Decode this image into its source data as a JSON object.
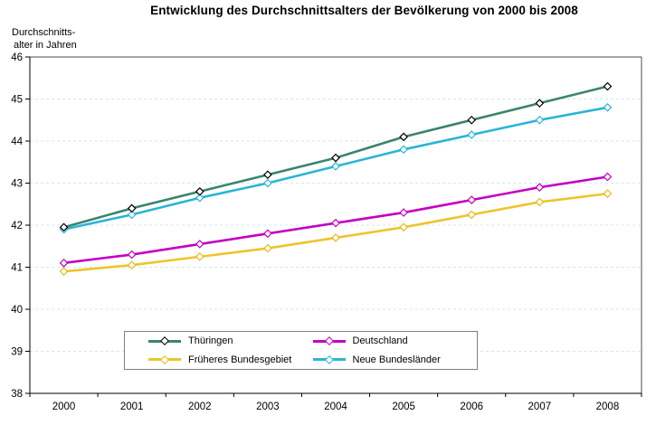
{
  "chart_data": {
    "type": "line",
    "title": "Entwicklung des Durchschnittsalters der Bevölkerung von 2000 bis 2008",
    "ylabel_lines": [
      "Durchschnitts-",
      "alter in Jahren"
    ],
    "xlabel": "",
    "x": [
      2000,
      2001,
      2002,
      2003,
      2004,
      2005,
      2006,
      2007,
      2008
    ],
    "ylim": [
      38,
      46
    ],
    "ytick_step": 1,
    "grid": "horizontal-dashed",
    "legend_position": "bottom-inside-box",
    "series": [
      {
        "name": "Thüringen",
        "color": "#3a8470",
        "marker_border": "#000000",
        "values": [
          41.95,
          42.4,
          42.8,
          43.2,
          43.6,
          44.1,
          44.5,
          44.9,
          45.3
        ]
      },
      {
        "name": "Deutschland",
        "color": "#c400c4",
        "marker_border": "#c400c4",
        "values": [
          41.1,
          41.3,
          41.55,
          41.8,
          42.05,
          42.3,
          42.6,
          42.9,
          43.15
        ]
      },
      {
        "name": "Früheres Bundesgebiet",
        "color": "#eec42c",
        "marker_border": "#e5ba20",
        "values": [
          40.9,
          41.05,
          41.25,
          41.45,
          41.7,
          41.95,
          42.25,
          42.55,
          42.75
        ]
      },
      {
        "name": "Neue Bundesländer",
        "color": "#2ab5d5",
        "marker_border": "#2ab5d5",
        "values": [
          41.9,
          42.25,
          42.65,
          43.0,
          43.4,
          43.8,
          44.15,
          44.5,
          44.8
        ]
      }
    ]
  },
  "colors": {
    "gridline": "#cde9f1",
    "axis": "#000000",
    "frame": "#4d4d4d",
    "tick_label": "#000000",
    "legend_border": "#7f7f7f",
    "background": "#ffffff"
  }
}
